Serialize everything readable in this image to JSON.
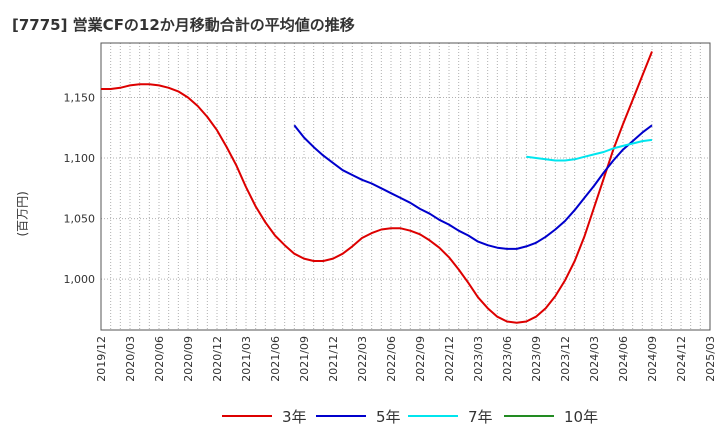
{
  "chart_data": {
    "type": "line",
    "title": "[7775]  営業CFの12か月移動合計の平均値の推移",
    "ylabel": "(百万円)",
    "xlabel": "",
    "ylim": [
      958,
      1195
    ],
    "yticks": [
      1000,
      1050,
      1100,
      1150
    ],
    "ytick_labels": [
      "1,000",
      "1,050",
      "1,100",
      "1,150"
    ],
    "xticks": [
      "2019/12",
      "2020/03",
      "2020/06",
      "2020/09",
      "2020/12",
      "2021/03",
      "2021/06",
      "2021/09",
      "2021/12",
      "2022/03",
      "2022/06",
      "2022/09",
      "2022/12",
      "2023/03",
      "2023/06",
      "2023/09",
      "2023/12",
      "2024/03",
      "2024/06",
      "2024/09",
      "2024/12",
      "2025/03"
    ],
    "grid": true,
    "legend_position": "bottom",
    "series": [
      {
        "name": "3年",
        "color": "#dd0000",
        "points": [
          [
            "2019/12",
            1157
          ],
          [
            "2020/01",
            1157
          ],
          [
            "2020/02",
            1158
          ],
          [
            "2020/03",
            1160
          ],
          [
            "2020/04",
            1161
          ],
          [
            "2020/05",
            1161
          ],
          [
            "2020/06",
            1160
          ],
          [
            "2020/07",
            1158
          ],
          [
            "2020/08",
            1155
          ],
          [
            "2020/09",
            1150
          ],
          [
            "2020/10",
            1143
          ],
          [
            "2020/11",
            1134
          ],
          [
            "2020/12",
            1123
          ],
          [
            "2021/01",
            1109
          ],
          [
            "2021/02",
            1094
          ],
          [
            "2021/03",
            1076
          ],
          [
            "2021/04",
            1060
          ],
          [
            "2021/05",
            1047
          ],
          [
            "2021/06",
            1036
          ],
          [
            "2021/07",
            1028
          ],
          [
            "2021/08",
            1021
          ],
          [
            "2021/09",
            1017
          ],
          [
            "2021/10",
            1015
          ],
          [
            "2021/11",
            1015
          ],
          [
            "2021/12",
            1017
          ],
          [
            "2022/01",
            1021
          ],
          [
            "2022/02",
            1027
          ],
          [
            "2022/03",
            1034
          ],
          [
            "2022/04",
            1038
          ],
          [
            "2022/05",
            1041
          ],
          [
            "2022/06",
            1042
          ],
          [
            "2022/07",
            1042
          ],
          [
            "2022/08",
            1040
          ],
          [
            "2022/09",
            1037
          ],
          [
            "2022/10",
            1032
          ],
          [
            "2022/11",
            1026
          ],
          [
            "2022/12",
            1018
          ],
          [
            "2023/01",
            1008
          ],
          [
            "2023/02",
            997
          ],
          [
            "2023/03",
            985
          ],
          [
            "2023/04",
            976
          ],
          [
            "2023/05",
            969
          ],
          [
            "2023/06",
            965
          ],
          [
            "2023/07",
            964
          ],
          [
            "2023/08",
            965
          ],
          [
            "2023/09",
            969
          ],
          [
            "2023/10",
            976
          ],
          [
            "2023/11",
            986
          ],
          [
            "2023/12",
            999
          ],
          [
            "2024/01",
            1015
          ],
          [
            "2024/02",
            1035
          ],
          [
            "2024/03",
            1059
          ],
          [
            "2024/04",
            1083
          ],
          [
            "2024/05",
            1107
          ],
          [
            "2024/06",
            1128
          ],
          [
            "2024/07",
            1148
          ],
          [
            "2024/08",
            1168
          ],
          [
            "2024/09",
            1188
          ]
        ]
      },
      {
        "name": "5年",
        "color": "#0000cc",
        "points": [
          [
            "2021/08",
            1127
          ],
          [
            "2021/09",
            1117
          ],
          [
            "2021/10",
            1109
          ],
          [
            "2021/11",
            1102
          ],
          [
            "2021/12",
            1096
          ],
          [
            "2022/01",
            1090
          ],
          [
            "2022/02",
            1086
          ],
          [
            "2022/03",
            1082
          ],
          [
            "2022/04",
            1079
          ],
          [
            "2022/05",
            1075
          ],
          [
            "2022/06",
            1071
          ],
          [
            "2022/07",
            1067
          ],
          [
            "2022/08",
            1063
          ],
          [
            "2022/09",
            1058
          ],
          [
            "2022/10",
            1054
          ],
          [
            "2022/11",
            1049
          ],
          [
            "2022/12",
            1045
          ],
          [
            "2023/01",
            1040
          ],
          [
            "2023/02",
            1036
          ],
          [
            "2023/03",
            1031
          ],
          [
            "2023/04",
            1028
          ],
          [
            "2023/05",
            1026
          ],
          [
            "2023/06",
            1025
          ],
          [
            "2023/07",
            1025
          ],
          [
            "2023/08",
            1027
          ],
          [
            "2023/09",
            1030
          ],
          [
            "2023/10",
            1035
          ],
          [
            "2023/11",
            1041
          ],
          [
            "2023/12",
            1048
          ],
          [
            "2024/01",
            1057
          ],
          [
            "2024/02",
            1067
          ],
          [
            "2024/03",
            1077
          ],
          [
            "2024/04",
            1088
          ],
          [
            "2024/05",
            1098
          ],
          [
            "2024/06",
            1107
          ],
          [
            "2024/07",
            1114
          ],
          [
            "2024/08",
            1121
          ],
          [
            "2024/09",
            1127
          ]
        ]
      },
      {
        "name": "7年",
        "color": "#00e5ee",
        "points": [
          [
            "2023/08",
            1101
          ],
          [
            "2023/09",
            1100
          ],
          [
            "2023/10",
            1099
          ],
          [
            "2023/11",
            1098
          ],
          [
            "2023/12",
            1098
          ],
          [
            "2024/01",
            1099
          ],
          [
            "2024/02",
            1101
          ],
          [
            "2024/03",
            1103
          ],
          [
            "2024/04",
            1105
          ],
          [
            "2024/05",
            1108
          ],
          [
            "2024/06",
            1110
          ],
          [
            "2024/07",
            1112
          ],
          [
            "2024/08",
            1114
          ],
          [
            "2024/09",
            1115
          ]
        ]
      },
      {
        "name": "10年",
        "color": "#228b22",
        "points": []
      }
    ]
  }
}
